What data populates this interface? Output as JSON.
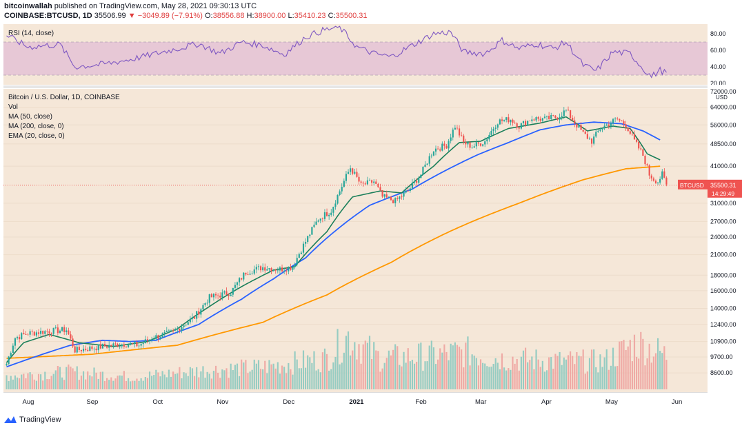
{
  "header": {
    "line1_user": "bitcoinwallah",
    "line1_rest": "published on TradingView.com, May 28, 2021 09:30:13 UTC",
    "symbol": "COINBASE:BTCUSD, 1D",
    "last": "35506.99",
    "change": "▼ −3049.89 (−7.91%)",
    "open_label": "O:",
    "open": "38556.88",
    "high_label": "H:",
    "high": "38900.00",
    "low_label": "L:",
    "low": "35410.23",
    "close_label": "C:",
    "close": "35500.31"
  },
  "rsi": {
    "label": "RSI (14, close)",
    "ticks": [
      "80.00",
      "60.00",
      "40.00",
      "20.00"
    ]
  },
  "legend": {
    "title": "Bitcoin / U.S. Dollar, 1D, COINBASE",
    "vol": "Vol",
    "ma50": "MA (50, close)",
    "ma200": "MA (200, close, 0)",
    "ema20": "EMA (20, close, 0)"
  },
  "price_label": {
    "symbol": "BTCUSD",
    "price": "35500.31",
    "countdown": "14:29:49"
  },
  "footer": {
    "brand": "TradingView"
  },
  "colors": {
    "up": "#26a69a",
    "down": "#ef5350",
    "ma50": "#2962ff",
    "ma200": "#ff9800",
    "ema20": "#1b7f5a",
    "rsi": "#7e57c2",
    "rsi_band": "#e7c8d6",
    "background": "#f5e7d8"
  },
  "chart_data": {
    "type": "candlestick",
    "title": "Bitcoin / U.S. Dollar, 1D, COINBASE",
    "yscale": "log",
    "ylim": [
      8000,
      72000
    ],
    "ylabel": "USD",
    "yticks": [
      "64000.00",
      "56000.00",
      "48500.00",
      "41000.00",
      "31000.00",
      "27000.00",
      "24000.00",
      "21000.00",
      "18000.00",
      "16000.00",
      "14000.00",
      "12400.00",
      "10900.00",
      "9700.00",
      "8600.00"
    ],
    "y_unit_label": "USD",
    "y_top_label": "72000.00",
    "xticks": [
      "Aug",
      "Sep",
      "Oct",
      "Nov",
      "Dec",
      "2021",
      "Feb",
      "Mar",
      "Apr",
      "May",
      "Jun"
    ],
    "x_range_days": 309,
    "price_anchors": [
      [
        0,
        9200
      ],
      [
        4,
        11200
      ],
      [
        10,
        11600
      ],
      [
        20,
        11800
      ],
      [
        28,
        11900
      ],
      [
        32,
        10200
      ],
      [
        45,
        10500
      ],
      [
        55,
        10700
      ],
      [
        62,
        10600
      ],
      [
        68,
        11200
      ],
      [
        78,
        11700
      ],
      [
        88,
        13100
      ],
      [
        95,
        15200
      ],
      [
        105,
        15800
      ],
      [
        112,
        18400
      ],
      [
        120,
        19100
      ],
      [
        128,
        18800
      ],
      [
        134,
        19200
      ],
      [
        140,
        23200
      ],
      [
        146,
        27500
      ],
      [
        152,
        29300
      ],
      [
        156,
        34000
      ],
      [
        161,
        40500
      ],
      [
        166,
        35500
      ],
      [
        172,
        36500
      ],
      [
        176,
        32500
      ],
      [
        182,
        31500
      ],
      [
        188,
        34000
      ],
      [
        194,
        38500
      ],
      [
        200,
        46500
      ],
      [
        206,
        48000
      ],
      [
        210,
        55500
      ],
      [
        214,
        49000
      ],
      [
        218,
        47500
      ],
      [
        224,
        49500
      ],
      [
        230,
        57500
      ],
      [
        236,
        58500
      ],
      [
        240,
        55500
      ],
      [
        246,
        58800
      ],
      [
        252,
        58500
      ],
      [
        258,
        59500
      ],
      [
        262,
        62500
      ],
      [
        266,
        57000
      ],
      [
        270,
        52500
      ],
      [
        274,
        49500
      ],
      [
        278,
        54500
      ],
      [
        282,
        56500
      ],
      [
        286,
        58500
      ],
      [
        290,
        56000
      ],
      [
        294,
        49500
      ],
      [
        298,
        44500
      ],
      [
        301,
        38500
      ],
      [
        303,
        37200
      ],
      [
        305,
        36500
      ],
      [
        307,
        38500
      ],
      [
        309,
        35500
      ]
    ],
    "ma50_anchors": [
      [
        0,
        9000
      ],
      [
        30,
        10600
      ],
      [
        45,
        11000
      ],
      [
        58,
        10900
      ],
      [
        70,
        11000
      ],
      [
        90,
        12400
      ],
      [
        110,
        15000
      ],
      [
        125,
        17500
      ],
      [
        140,
        20500
      ],
      [
        155,
        25500
      ],
      [
        170,
        30500
      ],
      [
        190,
        34500
      ],
      [
        205,
        39500
      ],
      [
        220,
        44500
      ],
      [
        235,
        49000
      ],
      [
        250,
        54000
      ],
      [
        262,
        56000
      ],
      [
        275,
        57200
      ],
      [
        288,
        56500
      ],
      [
        298,
        53500
      ],
      [
        306,
        50000
      ]
    ],
    "ma200_anchors": [
      [
        0,
        9600
      ],
      [
        40,
        9900
      ],
      [
        80,
        10600
      ],
      [
        120,
        12600
      ],
      [
        150,
        15500
      ],
      [
        180,
        19800
      ],
      [
        210,
        25500
      ],
      [
        240,
        31000
      ],
      [
        270,
        37000
      ],
      [
        290,
        40200
      ],
      [
        306,
        41000
      ]
    ],
    "ema20_anchors": [
      [
        0,
        9300
      ],
      [
        8,
        10800
      ],
      [
        20,
        11500
      ],
      [
        34,
        10800
      ],
      [
        50,
        10500
      ],
      [
        66,
        10900
      ],
      [
        80,
        12000
      ],
      [
        95,
        14200
      ],
      [
        110,
        16500
      ],
      [
        125,
        18700
      ],
      [
        135,
        19200
      ],
      [
        150,
        25000
      ],
      [
        162,
        32500
      ],
      [
        175,
        34000
      ],
      [
        185,
        33500
      ],
      [
        200,
        41000
      ],
      [
        212,
        49000
      ],
      [
        222,
        49500
      ],
      [
        235,
        54500
      ],
      [
        250,
        56800
      ],
      [
        262,
        59500
      ],
      [
        272,
        53500
      ],
      [
        284,
        55500
      ],
      [
        292,
        54500
      ],
      [
        300,
        45000
      ],
      [
        306,
        43000
      ]
    ],
    "volume_profile": [
      [
        0,
        0.22
      ],
      [
        30,
        0.28
      ],
      [
        60,
        0.2
      ],
      [
        90,
        0.3
      ],
      [
        120,
        0.36
      ],
      [
        150,
        0.5
      ],
      [
        160,
        0.85
      ],
      [
        175,
        0.5
      ],
      [
        200,
        0.55
      ],
      [
        215,
        0.6
      ],
      [
        230,
        0.5
      ],
      [
        260,
        0.45
      ],
      [
        280,
        0.45
      ],
      [
        295,
        0.75
      ],
      [
        309,
        0.55
      ]
    ],
    "rsi_anchors": [
      [
        0,
        78
      ],
      [
        10,
        64
      ],
      [
        25,
        67
      ],
      [
        32,
        40
      ],
      [
        45,
        43
      ],
      [
        60,
        50
      ],
      [
        70,
        56
      ],
      [
        80,
        62
      ],
      [
        90,
        68
      ],
      [
        100,
        56
      ],
      [
        110,
        70
      ],
      [
        120,
        66
      ],
      [
        130,
        55
      ],
      [
        140,
        76
      ],
      [
        148,
        84
      ],
      [
        156,
        88
      ],
      [
        164,
        64
      ],
      [
        172,
        56
      ],
      [
        180,
        52
      ],
      [
        190,
        66
      ],
      [
        200,
        80
      ],
      [
        208,
        82
      ],
      [
        214,
        58
      ],
      [
        224,
        56
      ],
      [
        232,
        72
      ],
      [
        240,
        62
      ],
      [
        248,
        68
      ],
      [
        256,
        62
      ],
      [
        262,
        70
      ],
      [
        270,
        42
      ],
      [
        276,
        35
      ],
      [
        284,
        58
      ],
      [
        292,
        56
      ],
      [
        298,
        38
      ],
      [
        302,
        28
      ],
      [
        306,
        36
      ],
      [
        309,
        32
      ]
    ],
    "rsi_range": [
      20,
      90
    ],
    "rsi_band": [
      30,
      70
    ]
  }
}
